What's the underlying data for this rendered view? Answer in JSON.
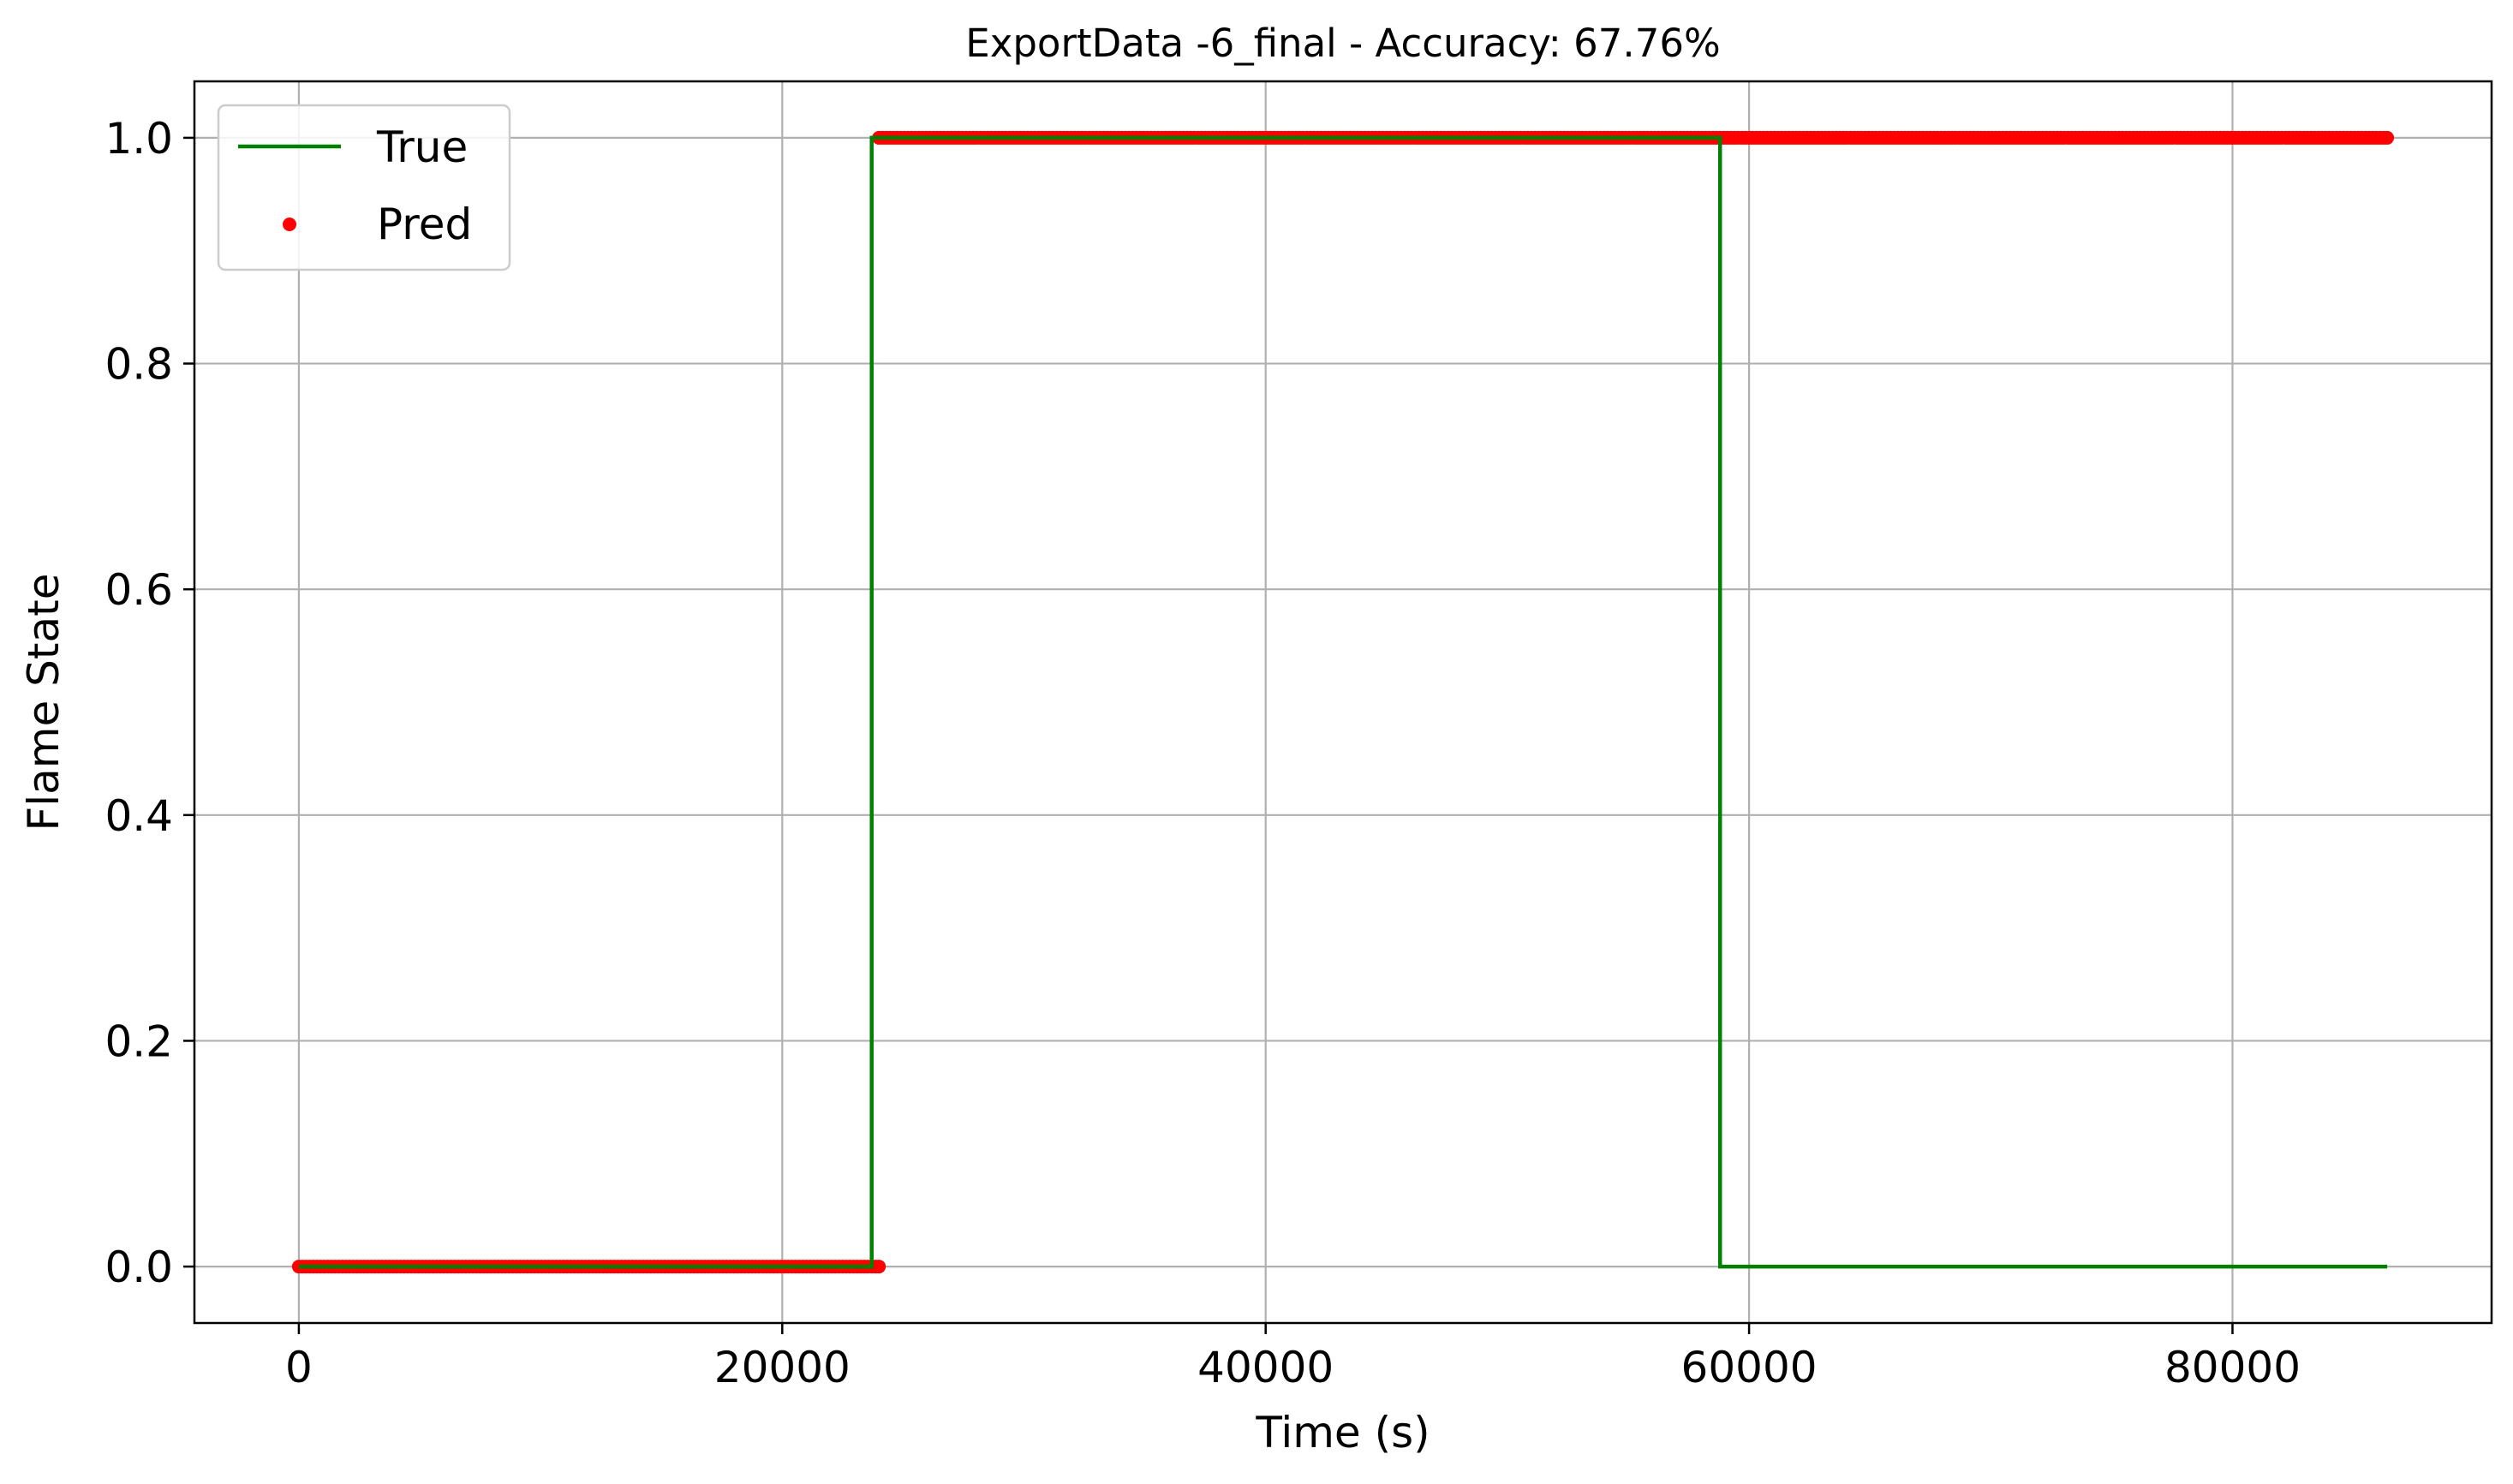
{
  "chart_data": {
    "type": "line",
    "title": "ExportData -6_final - Accuracy: 67.76%",
    "xlabel": "Time (s)",
    "ylabel": "Flame State",
    "xlim": [
      -4320,
      90720
    ],
    "ylim": [
      -0.05,
      1.05
    ],
    "x_ticks": [
      0,
      20000,
      40000,
      60000,
      80000
    ],
    "x_tick_labels": [
      "0",
      "20000",
      "40000",
      "60000",
      "80000"
    ],
    "y_ticks": [
      0.0,
      0.2,
      0.4,
      0.6,
      0.8,
      1.0
    ],
    "y_tick_labels": [
      "0.0",
      "0.2",
      "0.4",
      "0.6",
      "0.8",
      "1.0"
    ],
    "grid": true,
    "legend_position": "upper-left",
    "series": [
      {
        "name": "True",
        "kind": "line",
        "color": "#008000",
        "x": [
          0,
          23700,
          23700,
          58800,
          58800,
          86400
        ],
        "y": [
          0,
          0,
          1,
          1,
          0,
          0
        ]
      },
      {
        "name": "Pred",
        "kind": "scatter",
        "color": "#ff0000",
        "segments": [
          {
            "x_start": 0,
            "x_end": 24000,
            "y": 0
          },
          {
            "x_start": 24000,
            "x_end": 86400,
            "y": 1
          }
        ]
      }
    ]
  }
}
